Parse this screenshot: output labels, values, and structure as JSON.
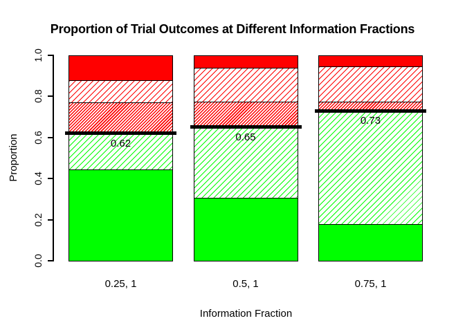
{
  "chart_data": {
    "type": "bar",
    "stacked": true,
    "title": "Proportion of Trial Outcomes at Different Information Fractions",
    "xlabel": "Information Fraction",
    "ylabel": "Proportion",
    "categories": [
      "0.25, 1",
      "0.5, 1",
      "0.75, 1"
    ],
    "ylim": [
      0,
      1
    ],
    "ytick_values": [
      0,
      0.2,
      0.4,
      0.6,
      0.8,
      1
    ],
    "ytick_labels": [
      "0.0",
      "0.2",
      "0.4",
      "0.6",
      "0.8",
      "1.0"
    ],
    "grid": false,
    "legend": "none",
    "colors": {
      "green": "#00FF00",
      "red": "#FF0000",
      "line": "#000000",
      "background": "#FFFFFF"
    },
    "series": [
      {
        "name": "solid-green",
        "fill": "solid",
        "color": "#00FF00",
        "values": [
          0.445,
          0.305,
          0.18
        ]
      },
      {
        "name": "green-hatched",
        "fill": "hatch",
        "color": "#00FF00",
        "values": [
          0.175,
          0.34,
          0.55
        ]
      },
      {
        "name": "red-dense-hatched",
        "fill": "hatch-dense",
        "color": "#FF0000",
        "values": [
          0.15,
          0.13,
          0.045
        ]
      },
      {
        "name": "red-hatched",
        "fill": "hatch",
        "color": "#FF0000",
        "values": [
          0.11,
          0.165,
          0.17
        ]
      },
      {
        "name": "solid-red",
        "fill": "solid",
        "color": "#FF0000",
        "values": [
          0.12,
          0.06,
          0.055
        ]
      }
    ],
    "threshold_lines": {
      "values": [
        0.62,
        0.65,
        0.73
      ],
      "labels": [
        "0.62",
        "0.65",
        "0.73"
      ],
      "color": "#000000"
    }
  }
}
